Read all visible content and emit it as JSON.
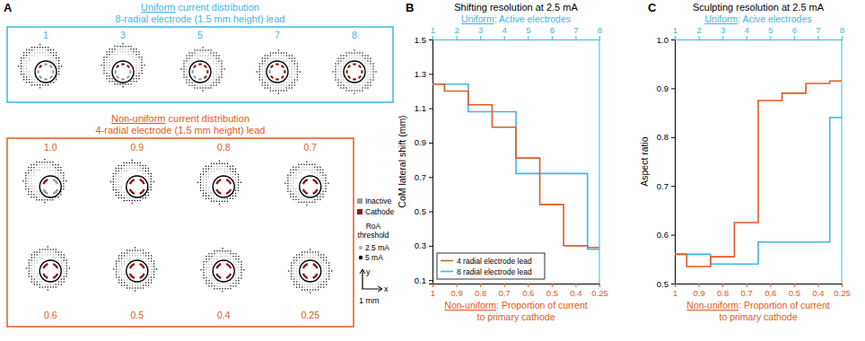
{
  "panel_a": {
    "panel_label": "A",
    "uniform": {
      "title_underlined": "Uniform",
      "title": "current distribution",
      "lead": "8-radial electrode (1.5 mm height) lead",
      "color": "#3db7e4",
      "contacts": 8,
      "active_electrodes": [
        1,
        3,
        5,
        7,
        8
      ]
    },
    "non_uniform": {
      "title_underlined": "Non-uniform",
      "title": "current distribution",
      "lead": "4-radial electrode (1.5 mm height) lead",
      "color": "#e35b22",
      "contacts": 4,
      "primary_cathode_proportion": [
        {
          "value": 1,
          "label": "1.0"
        },
        0.9,
        0.8,
        0.7,
        0.6,
        0.5,
        0.4,
        0.25
      ]
    },
    "legend": {
      "inactive": {
        "label": "Inactive",
        "color": "#9a9a9a"
      },
      "cathode": {
        "label": "Cathode",
        "color": "#8b1a1a"
      },
      "roa_title": [
        "RoA",
        "threshold"
      ],
      "roa": [
        {
          "label": "2.5 mA",
          "color": "#b4b4b4"
        },
        {
          "label": "5 mA",
          "color": "#000000"
        }
      ]
    },
    "scale_bar": {
      "y": "y",
      "x": "x",
      "label": "1 mm"
    }
  },
  "chart_data": [
    {
      "type": "line",
      "panel_label": "B",
      "title": "Shifting resolution at 2.5 mA",
      "x2_label_underlined": "Uniform",
      "x2_label": ": Active electrodes",
      "x_label_underlined": "Non-uniform",
      "x_label": [
        ": Proportion of current",
        "to primary cathode"
      ],
      "y_label": "CoM lateral shift (mm)",
      "categories": [
        "1",
        "0.9",
        "0.8",
        "0.7",
        "0.6",
        "0.5",
        "0.4",
        "0.25"
      ],
      "x2_categories": [
        1,
        2,
        3,
        4,
        5,
        6,
        7,
        8
      ],
      "series": [
        {
          "name": "4 radial electrode lead",
          "color": "#e35b22",
          "axis": "x",
          "values": [
            1.24,
            1.2,
            1.12,
            0.99,
            0.81,
            0.54,
            0.3,
            0.29
          ]
        },
        {
          "name": "8 radial electrode lead",
          "color": "#3db7e4",
          "axis": "x2",
          "values": [
            1.24,
            1.24,
            1.08,
            1.08,
            0.72,
            0.72,
            0.72,
            0.28
          ]
        }
      ],
      "ylim": [
        0.08,
        1.5
      ],
      "yticks": [
        0.1,
        0.3,
        0.5,
        0.7,
        0.9,
        1.1,
        1.3,
        1.5
      ],
      "line_style": "step",
      "legend": "lower left"
    },
    {
      "type": "line",
      "panel_label": "C",
      "title": "Sculpting resolution at 2.5 mA",
      "x2_label_underlined": "Uniform",
      "x2_label": ": Acive electrodes",
      "x_label_underlined": "Non-uniform",
      "x_label": [
        ": Proportion of current",
        "to primary cathode"
      ],
      "y_label": "Aspect ratio",
      "categories": [
        "1",
        "0.9",
        "0.8",
        "0.7",
        "0.6",
        "0.5",
        "0.4",
        "0.25"
      ],
      "x2_categories": [
        1,
        2,
        3,
        4,
        5,
        6,
        7,
        8
      ],
      "series": [
        {
          "color": "#e35b22",
          "axis": "x",
          "values": [
            0.56,
            0.535,
            0.555,
            0.625,
            0.875,
            0.89,
            0.91,
            0.915
          ]
        },
        {
          "color": "#3db7e4",
          "axis": "x2",
          "values": [
            0.56,
            0.56,
            0.54,
            0.54,
            0.585,
            0.585,
            0.585,
            0.84
          ]
        }
      ],
      "ylim": [
        0.5,
        1
      ],
      "yticks": [
        0.5,
        0.6,
        0.7,
        0.8,
        0.9,
        {
          "value": 1,
          "label": "1.0"
        }
      ],
      "line_style": "step"
    }
  ]
}
